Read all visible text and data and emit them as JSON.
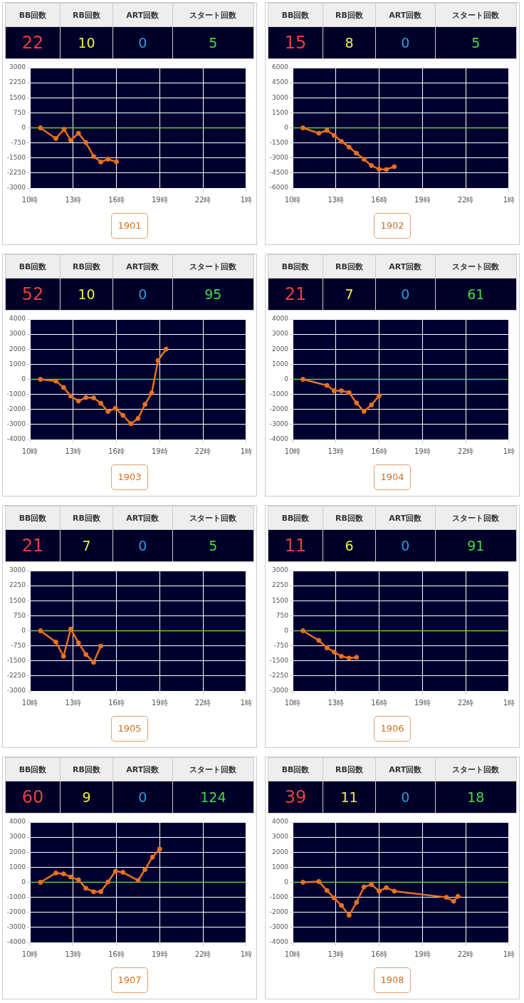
{
  "chart_data": [
    {
      "type": "other",
      "categories": [
        "BB回数",
        "RB回数",
        "ART回数",
        "スタート回数"
      ],
      "values": [
        22,
        10,
        0,
        5
      ],
      "data_labels": true
    },
    {
      "type": "line",
      "title": "1901",
      "x": [
        "--01-01T10:44",
        "--01-01T11:48",
        "--01-01T12:22",
        "--01-01T12:50",
        "--01-01T13:22",
        "--01-01T13:53",
        "--01-01T14:25",
        "--01-01T14:55",
        "--01-01T15:25",
        "--01-01T16:00"
      ],
      "series": [
        {
          "color": "#e8701e",
          "values": [
            0,
            -530,
            -70,
            -620,
            -270,
            -730,
            -1420,
            -1700,
            -1560,
            -1690
          ]
        }
      ],
      "xlim": [
        "--01-01T10:00",
        "--01-02T01:00"
      ],
      "xticks": [
        {
          "value": "--01-01T10:00",
          "label": "10時"
        },
        {
          "value": "--01-01T13:00",
          "label": "13時"
        },
        {
          "value": "--01-01T16:00",
          "label": "16時"
        },
        {
          "value": "--01-01T19:00",
          "label": "19時"
        },
        {
          "value": "--01-01T22:00",
          "label": "22時"
        },
        {
          "value": "--01-02T01:00",
          "label": "1時"
        }
      ],
      "ylim": [
        -3000,
        3000
      ],
      "yticks": [
        -3000,
        -2250,
        -1500,
        -750,
        0,
        750,
        1500,
        2250,
        3000
      ],
      "grid": true,
      "marker": "circle",
      "ref_lines": [
        {
          "axis": "y",
          "value": 0,
          "color": "#66cc33"
        }
      ]
    },
    {
      "type": "other",
      "categories": [
        "BB回数",
        "RB回数",
        "ART回数",
        "スタート回数"
      ],
      "values": [
        15,
        8,
        0,
        5
      ],
      "data_labels": true
    },
    {
      "type": "line",
      "title": "1902",
      "x": [
        "--01-01T10:43",
        "--01-01T11:49",
        "--01-01T12:23",
        "--01-01T12:53",
        "--01-01T13:23",
        "--01-01T13:55",
        "--01-01T14:25",
        "--01-01T14:57",
        "--01-01T15:28",
        "--01-01T16:00",
        "--01-01T16:30",
        "--01-01T17:03"
      ],
      "series": [
        {
          "color": "#e8701e",
          "values": [
            0,
            -530,
            -250,
            -750,
            -1350,
            -1920,
            -2520,
            -3120,
            -3760,
            -4120,
            -4150,
            -3870
          ]
        }
      ],
      "xlim": [
        "--01-01T10:00",
        "--01-02T01:00"
      ],
      "xticks": [
        {
          "value": "--01-01T10:00",
          "label": "10時"
        },
        {
          "value": "--01-01T13:00",
          "label": "13時"
        },
        {
          "value": "--01-01T16:00",
          "label": "16時"
        },
        {
          "value": "--01-01T19:00",
          "label": "19時"
        },
        {
          "value": "--01-01T22:00",
          "label": "22時"
        },
        {
          "value": "--01-02T01:00",
          "label": "1時"
        }
      ],
      "ylim": [
        -6000,
        6000
      ],
      "yticks": [
        -6000,
        -4500,
        -3000,
        -1500,
        0,
        1500,
        3000,
        4500,
        6000
      ],
      "grid": true,
      "marker": "circle",
      "ref_lines": [
        {
          "axis": "y",
          "value": 0,
          "color": "#66cc33"
        }
      ]
    },
    {
      "type": "other",
      "categories": [
        "BB回数",
        "RB回数",
        "ART回数",
        "スタート回数"
      ],
      "values": [
        52,
        10,
        0,
        95
      ],
      "data_labels": true
    },
    {
      "type": "line",
      "title": "1903",
      "x": [
        "--01-01T10:44",
        "--01-01T11:48",
        "--01-01T12:20",
        "--01-01T12:50",
        "--01-01T13:22",
        "--01-01T13:53",
        "--01-01T14:25",
        "--01-01T14:55",
        "--01-01T15:25",
        "--01-01T15:56",
        "--01-01T16:27",
        "--01-01T17:00",
        "--01-01T17:30",
        "--01-01T17:59",
        "--01-01T18:27",
        "--01-01T18:53",
        "--01-01T19:27"
      ],
      "series": [
        {
          "color": "#e8701e",
          "values": [
            0,
            -120,
            -540,
            -1110,
            -1440,
            -1210,
            -1230,
            -1590,
            -2130,
            -1920,
            -2390,
            -2950,
            -2600,
            -1660,
            -900,
            1250,
            2010
          ]
        }
      ],
      "xlim": [
        "--01-01T10:00",
        "--01-02T01:00"
      ],
      "xticks": [
        {
          "value": "--01-01T10:00",
          "label": "10時"
        },
        {
          "value": "--01-01T13:00",
          "label": "13時"
        },
        {
          "value": "--01-01T16:00",
          "label": "16時"
        },
        {
          "value": "--01-01T19:00",
          "label": "19時"
        },
        {
          "value": "--01-01T22:00",
          "label": "22時"
        },
        {
          "value": "--01-02T01:00",
          "label": "1時"
        }
      ],
      "ylim": [
        -4000,
        4000
      ],
      "yticks": [
        -4000,
        -3000,
        -2000,
        -1000,
        0,
        1000,
        2000,
        3000,
        4000
      ],
      "grid": true,
      "marker": "circle",
      "ref_lines": [
        {
          "axis": "y",
          "value": 0,
          "color": "#66cc33"
        }
      ]
    },
    {
      "type": "other",
      "categories": [
        "BB回数",
        "RB回数",
        "ART回数",
        "スタート回数"
      ],
      "values": [
        21,
        7,
        0,
        61
      ],
      "data_labels": true
    },
    {
      "type": "line",
      "title": "1904",
      "x": [
        "--01-01T10:43",
        "--01-01T12:23",
        "--01-01T12:53",
        "--01-01T13:23",
        "--01-01T13:55",
        "--01-01T14:26",
        "--01-01T14:57",
        "--01-01T15:28",
        "--01-01T16:00"
      ],
      "series": [
        {
          "color": "#e8701e",
          "values": [
            0,
            -400,
            -760,
            -760,
            -880,
            -1570,
            -2130,
            -1700,
            -1090
          ]
        }
      ],
      "xlim": [
        "--01-01T10:00",
        "--01-02T01:00"
      ],
      "xticks": [
        {
          "value": "--01-01T10:00",
          "label": "10時"
        },
        {
          "value": "--01-01T13:00",
          "label": "13時"
        },
        {
          "value": "--01-01T16:00",
          "label": "16時"
        },
        {
          "value": "--01-01T19:00",
          "label": "19時"
        },
        {
          "value": "--01-01T22:00",
          "label": "22時"
        },
        {
          "value": "--01-02T01:00",
          "label": "1時"
        }
      ],
      "ylim": [
        -4000,
        4000
      ],
      "yticks": [
        -4000,
        -3000,
        -2000,
        -1000,
        0,
        1000,
        2000,
        3000,
        4000
      ],
      "grid": true,
      "marker": "circle",
      "ref_lines": [
        {
          "axis": "y",
          "value": 0,
          "color": "#66cc33"
        }
      ]
    },
    {
      "type": "other",
      "categories": [
        "BB回数",
        "RB回数",
        "ART回数",
        "スタート回数"
      ],
      "values": [
        21,
        7,
        0,
        5
      ],
      "data_labels": true
    },
    {
      "type": "line",
      "title": "1905",
      "x": [
        "--01-01T10:44",
        "--01-01T11:48",
        "--01-01T12:20",
        "--01-01T12:50",
        "--01-01T13:22",
        "--01-01T13:53",
        "--01-01T14:25",
        "--01-01T14:55"
      ],
      "series": [
        {
          "color": "#e8701e",
          "values": [
            0,
            -560,
            -1270,
            90,
            -600,
            -1180,
            -1570,
            -760
          ]
        }
      ],
      "xlim": [
        "--01-01T10:00",
        "--01-02T01:00"
      ],
      "xticks": [
        {
          "value": "--01-01T10:00",
          "label": "10時"
        },
        {
          "value": "--01-01T13:00",
          "label": "13時"
        },
        {
          "value": "--01-01T16:00",
          "label": "16時"
        },
        {
          "value": "--01-01T19:00",
          "label": "19時"
        },
        {
          "value": "--01-01T22:00",
          "label": "22時"
        },
        {
          "value": "--01-02T01:00",
          "label": "1時"
        }
      ],
      "ylim": [
        -3000,
        3000
      ],
      "yticks": [
        -3000,
        -2250,
        -1500,
        -750,
        0,
        750,
        1500,
        2250,
        3000
      ],
      "grid": true,
      "marker": "circle",
      "ref_lines": [
        {
          "axis": "y",
          "value": 0,
          "color": "#66cc33"
        }
      ]
    },
    {
      "type": "other",
      "categories": [
        "BB回数",
        "RB回数",
        "ART回数",
        "スタート回数"
      ],
      "values": [
        11,
        6,
        0,
        91
      ],
      "data_labels": true
    },
    {
      "type": "line",
      "title": "1906",
      "x": [
        "--01-01T10:43",
        "--01-01T11:49",
        "--01-01T12:23",
        "--01-01T12:53",
        "--01-01T13:23",
        "--01-01T13:55",
        "--01-01T14:26"
      ],
      "series": [
        {
          "color": "#e8701e",
          "values": [
            0,
            -480,
            -850,
            -1060,
            -1270,
            -1360,
            -1320
          ]
        }
      ],
      "xlim": [
        "--01-01T10:00",
        "--01-02T01:00"
      ],
      "xticks": [
        {
          "value": "--01-01T10:00",
          "label": "10時"
        },
        {
          "value": "--01-01T13:00",
          "label": "13時"
        },
        {
          "value": "--01-01T16:00",
          "label": "16時"
        },
        {
          "value": "--01-01T19:00",
          "label": "19時"
        },
        {
          "value": "--01-01T22:00",
          "label": "22時"
        },
        {
          "value": "--01-02T01:00",
          "label": "1時"
        }
      ],
      "ylim": [
        -3000,
        3000
      ],
      "yticks": [
        -3000,
        -2250,
        -1500,
        -750,
        0,
        750,
        1500,
        2250,
        3000
      ],
      "grid": true,
      "marker": "circle",
      "ref_lines": [
        {
          "axis": "y",
          "value": 0,
          "color": "#66cc33"
        }
      ]
    },
    {
      "type": "other",
      "categories": [
        "BB回数",
        "RB回数",
        "ART回数",
        "スタート回数"
      ],
      "values": [
        60,
        9,
        0,
        124
      ],
      "data_labels": true
    },
    {
      "type": "line",
      "title": "1907",
      "x": [
        "--01-01T10:44",
        "--01-01T11:48",
        "--01-01T12:20",
        "--01-01T12:50",
        "--01-01T13:22",
        "--01-01T13:53",
        "--01-01T14:25",
        "--01-01T14:55",
        "--01-01T15:25",
        "--01-01T15:56",
        "--01-01T16:27",
        "--01-01T17:30",
        "--01-01T17:59",
        "--01-01T18:30",
        "--01-01T19:00"
      ],
      "series": [
        {
          "color": "#e8701e",
          "values": [
            0,
            610,
            560,
            350,
            160,
            -400,
            -630,
            -630,
            20,
            730,
            660,
            120,
            850,
            1670,
            2210
          ]
        }
      ],
      "xlim": [
        "--01-01T10:00",
        "--01-02T01:00"
      ],
      "xticks": [
        {
          "value": "--01-01T10:00",
          "label": "10時"
        },
        {
          "value": "--01-01T13:00",
          "label": "13時"
        },
        {
          "value": "--01-01T16:00",
          "label": "16時"
        },
        {
          "value": "--01-01T19:00",
          "label": "19時"
        },
        {
          "value": "--01-01T22:00",
          "label": "22時"
        },
        {
          "value": "--01-02T01:00",
          "label": "1時"
        }
      ],
      "ylim": [
        -4000,
        4000
      ],
      "yticks": [
        -4000,
        -3000,
        -2000,
        -1000,
        0,
        1000,
        2000,
        3000,
        4000
      ],
      "grid": true,
      "marker": "circle",
      "ref_lines": [
        {
          "axis": "y",
          "value": 0,
          "color": "#66cc33"
        }
      ]
    },
    {
      "type": "other",
      "categories": [
        "BB回数",
        "RB回数",
        "ART回数",
        "スタート回数"
      ],
      "values": [
        39,
        11,
        0,
        18
      ],
      "data_labels": true
    },
    {
      "type": "line",
      "title": "1908",
      "x": [
        "--01-01T10:43",
        "--01-01T11:49",
        "--01-01T12:23",
        "--01-01T12:53",
        "--01-01T13:23",
        "--01-01T13:55",
        "--01-01T14:26",
        "--01-01T14:57",
        "--01-01T15:28",
        "--01-01T16:00",
        "--01-01T16:30",
        "--01-01T17:03",
        "--01-01T20:40",
        "--01-01T21:10",
        "--01-01T21:28"
      ],
      "series": [
        {
          "color": "#e8701e",
          "values": [
            0,
            50,
            -550,
            -1050,
            -1540,
            -2190,
            -1340,
            -310,
            -150,
            -590,
            -360,
            -590,
            -1000,
            -1260,
            -940
          ]
        }
      ],
      "xlim": [
        "--01-01T10:00",
        "--01-02T01:00"
      ],
      "xticks": [
        {
          "value": "--01-01T10:00",
          "label": "10時"
        },
        {
          "value": "--01-01T13:00",
          "label": "13時"
        },
        {
          "value": "--01-01T16:00",
          "label": "16時"
        },
        {
          "value": "--01-01T19:00",
          "label": "19時"
        },
        {
          "value": "--01-01T22:00",
          "label": "22時"
        },
        {
          "value": "--01-02T01:00",
          "label": "1時"
        }
      ],
      "ylim": [
        -4000,
        4000
      ],
      "yticks": [
        -4000,
        -3000,
        -2000,
        -1000,
        0,
        1000,
        2000,
        3000,
        4000
      ],
      "grid": true,
      "marker": "circle",
      "ref_lines": [
        {
          "axis": "y",
          "value": 0,
          "color": "#66cc33"
        }
      ]
    }
  ]
}
